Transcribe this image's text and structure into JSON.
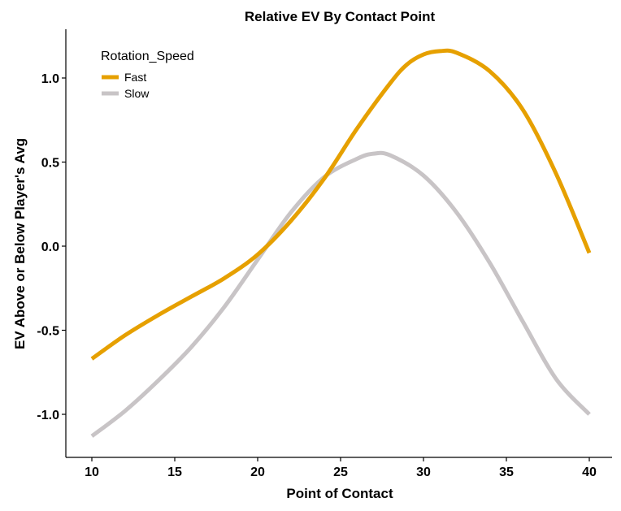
{
  "chart_data": {
    "type": "line",
    "title": "Relative EV By Contact Point",
    "xlabel": "Point of Contact",
    "ylabel": "EV Above or Below Player's Avg",
    "xlim": [
      10,
      40
    ],
    "ylim": [
      -1.25,
      1.3
    ],
    "x_ticks": [
      10,
      15,
      20,
      25,
      30,
      35,
      40
    ],
    "y_ticks": [
      -1.0,
      -0.5,
      0.0,
      0.5,
      1.0
    ],
    "y_tick_labels": [
      "-1.0",
      "-0.5",
      "0.0",
      "0.5",
      "1.0"
    ],
    "grid": false,
    "legend": {
      "title": "Rotation_Speed",
      "position": "top-left"
    },
    "series": [
      {
        "name": "Fast",
        "color": "#E6A000",
        "x": [
          10,
          12,
          14,
          16,
          18,
          20,
          22,
          24,
          26,
          28,
          29,
          30,
          31,
          32,
          34,
          36,
          38,
          40
        ],
        "y": [
          -0.67,
          -0.53,
          -0.41,
          -0.3,
          -0.19,
          -0.05,
          0.15,
          0.4,
          0.7,
          0.97,
          1.08,
          1.14,
          1.16,
          1.15,
          1.04,
          0.81,
          0.43,
          -0.04
        ]
      },
      {
        "name": "Slow",
        "color": "#C8C4C6",
        "x": [
          10,
          12,
          14,
          16,
          18,
          20,
          22,
          24,
          26,
          27,
          28,
          30,
          32,
          34,
          36,
          38,
          40
        ],
        "y": [
          -1.13,
          -0.98,
          -0.8,
          -0.6,
          -0.36,
          -0.08,
          0.2,
          0.41,
          0.52,
          0.55,
          0.54,
          0.42,
          0.2,
          -0.1,
          -0.45,
          -0.79,
          -1.0
        ]
      }
    ]
  }
}
